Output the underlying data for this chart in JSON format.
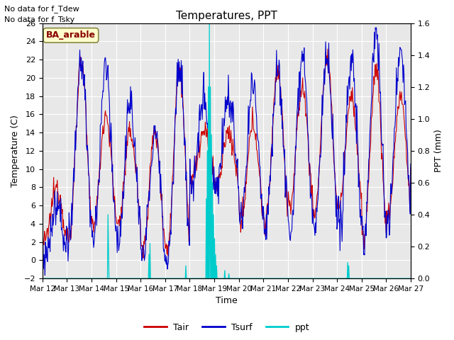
{
  "title": "Temperatures, PPT",
  "xlabel": "Time",
  "ylabel_left": "Temperature (C)",
  "ylabel_right": "PPT (mm)",
  "note1": "No data for f_Tdew",
  "note2": "No data for f_Tsky",
  "site_label": "BA_arable",
  "ylim_left": [
    -2,
    26
  ],
  "ylim_right": [
    0.0,
    1.6
  ],
  "yticks_left": [
    -2,
    0,
    2,
    4,
    6,
    8,
    10,
    12,
    14,
    16,
    18,
    20,
    22,
    24,
    26
  ],
  "yticks_right": [
    0.0,
    0.2,
    0.4,
    0.6,
    0.8,
    1.0,
    1.2,
    1.4,
    1.6
  ],
  "xtick_labels": [
    "Mar 12",
    "Mar 13",
    "Mar 14",
    "Mar 15",
    "Mar 16",
    "Mar 17",
    "Mar 18",
    "Mar 19",
    "Mar 20",
    "Mar 21",
    "Mar 22",
    "Mar 23",
    "Mar 24",
    "Mar 25",
    "Mar 26",
    "Mar 27"
  ],
  "color_tair": "#cc0000",
  "color_tsurf": "#0000cc",
  "color_ppt": "#00cccc",
  "bg_color": "#e8e8e8",
  "grid_color": "#ffffff"
}
